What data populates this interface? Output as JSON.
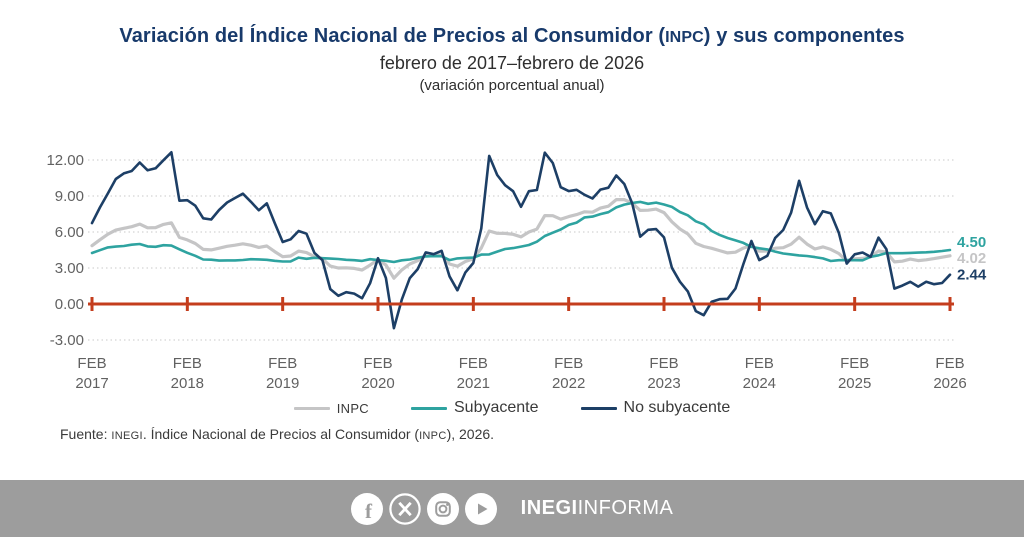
{
  "header": {
    "title_pre": "Variación del Índice Nacional de Precios al Consumidor (",
    "title_acronym": "INPC",
    "title_post": ") y sus componentes",
    "subtitle": "febrero de 2017–febrero de 2026",
    "note": "(variación porcentual anual)"
  },
  "chart_data": {
    "type": "line",
    "title": "Variación del Índice Nacional de Precios al Consumidor (INPC) y sus componentes",
    "subtitle": "febrero de 2017–febrero de 2026 (variación porcentual anual)",
    "x_frequency": "monthly",
    "x_start": "FEB 2017",
    "x_end": "FEB 2026",
    "x_tick_every_months": 12,
    "x_tick_labels": [
      [
        "FEB",
        "2017"
      ],
      [
        "FEB",
        "2018"
      ],
      [
        "FEB",
        "2019"
      ],
      [
        "FEB",
        "2020"
      ],
      [
        "FEB",
        "2021"
      ],
      [
        "FEB",
        "2022"
      ],
      [
        "FEB",
        "2023"
      ],
      [
        "FEB",
        "2024"
      ],
      [
        "FEB",
        "2025"
      ],
      [
        "FEB",
        "2026"
      ]
    ],
    "y_ticks": [
      12,
      9,
      6,
      3,
      0,
      -3
    ],
    "y_tick_labels": [
      "12.00",
      "9.00",
      "6.00",
      "3.00",
      "0.00",
      "-3.00"
    ],
    "ylim": [
      -3,
      12
    ],
    "grid": "horizontal-dotted",
    "grid_color": "#c9c9c9",
    "zero_axis_color": "#c43d1d",
    "axis_text_color": "#616161",
    "legend_position": "bottom",
    "series": [
      {
        "name": "INPC",
        "color": "#c5c5c6",
        "end_label": "4.02",
        "values": [
          4.86,
          5.35,
          5.82,
          6.16,
          6.31,
          6.44,
          6.66,
          6.35,
          6.37,
          6.63,
          6.77,
          5.55,
          5.34,
          5.04,
          4.55,
          4.51,
          4.65,
          4.81,
          4.9,
          5.02,
          4.9,
          4.72,
          4.83,
          4.37,
          3.94,
          4.0,
          4.41,
          4.28,
          3.95,
          3.78,
          3.16,
          3.0,
          3.02,
          2.97,
          2.83,
          3.24,
          3.7,
          3.25,
          2.15,
          2.84,
          3.33,
          3.62,
          4.05,
          4.01,
          4.09,
          3.33,
          3.15,
          3.54,
          3.76,
          4.67,
          6.08,
          5.89,
          5.88,
          5.81,
          5.59,
          6.0,
          6.24,
          7.37,
          7.36,
          7.07,
          7.28,
          7.45,
          7.68,
          7.65,
          7.99,
          8.15,
          8.7,
          8.7,
          8.41,
          7.8,
          7.82,
          7.91,
          7.62,
          6.85,
          6.25,
          5.84,
          5.06,
          4.79,
          4.64,
          4.45,
          4.26,
          4.32,
          4.66,
          4.88,
          4.4,
          4.42,
          4.65,
          4.69,
          4.98,
          5.57,
          4.99,
          4.58,
          4.76,
          4.55,
          4.21,
          3.59,
          3.77,
          3.8,
          3.93,
          4.42,
          4.32,
          3.51,
          3.57,
          3.74,
          3.62,
          3.68,
          3.78,
          3.9,
          4.02
        ]
      },
      {
        "name": "Subyacente",
        "color": "#2ea3a0",
        "end_label": "4.50",
        "values": [
          4.25,
          4.48,
          4.72,
          4.78,
          4.83,
          4.94,
          5.0,
          4.8,
          4.77,
          4.9,
          4.87,
          4.56,
          4.27,
          4.02,
          3.71,
          3.69,
          3.62,
          3.63,
          3.63,
          3.67,
          3.73,
          3.72,
          3.68,
          3.6,
          3.54,
          3.55,
          3.87,
          3.77,
          3.85,
          3.82,
          3.78,
          3.75,
          3.68,
          3.65,
          3.59,
          3.73,
          3.66,
          3.6,
          3.5,
          3.64,
          3.71,
          3.85,
          3.97,
          3.99,
          3.98,
          3.66,
          3.8,
          3.84,
          3.87,
          4.12,
          4.13,
          4.37,
          4.58,
          4.66,
          4.78,
          4.92,
          5.19,
          5.67,
          5.94,
          6.21,
          6.59,
          6.78,
          7.22,
          7.28,
          7.49,
          7.65,
          8.05,
          8.28,
          8.42,
          8.51,
          8.35,
          8.45,
          8.29,
          8.09,
          7.67,
          7.39,
          6.89,
          6.64,
          6.08,
          5.76,
          5.5,
          5.3,
          5.09,
          4.76,
          4.64,
          4.55,
          4.37,
          4.21,
          4.13,
          4.05,
          4.0,
          3.91,
          3.8,
          3.58,
          3.65,
          3.66,
          3.65,
          3.64,
          3.93,
          4.06,
          4.24,
          4.23,
          4.23,
          4.26,
          4.28,
          4.31,
          4.35,
          4.42,
          4.5
        ]
      },
      {
        "name": "No subyacente",
        "color": "#1d3f66",
        "end_label": "2.44",
        "values": [
          6.74,
          8.04,
          9.22,
          10.42,
          10.88,
          11.08,
          11.79,
          11.14,
          11.31,
          11.98,
          12.64,
          8.61,
          8.65,
          8.19,
          7.14,
          7.04,
          7.83,
          8.46,
          8.83,
          9.19,
          8.52,
          7.81,
          8.38,
          6.75,
          5.17,
          5.39,
          6.08,
          5.86,
          4.26,
          3.66,
          1.24,
          0.68,
          0.98,
          0.87,
          0.48,
          1.73,
          3.82,
          2.17,
          -2.02,
          0.37,
          2.16,
          2.91,
          4.3,
          4.15,
          4.43,
          2.31,
          1.14,
          2.63,
          3.42,
          6.31,
          12.34,
          10.75,
          9.9,
          9.4,
          8.1,
          9.4,
          9.5,
          12.61,
          11.75,
          9.73,
          9.41,
          9.52,
          9.1,
          8.79,
          9.53,
          9.69,
          10.71,
          10.0,
          8.38,
          5.61,
          6.18,
          6.24,
          5.55,
          3.02,
          1.86,
          1.05,
          -0.59,
          -0.93,
          0.19,
          0.4,
          0.43,
          1.29,
          3.33,
          5.25,
          3.66,
          4.02,
          5.51,
          6.17,
          7.61,
          10.27,
          8.05,
          6.65,
          7.73,
          7.55,
          5.94,
          3.37,
          4.14,
          4.29,
          3.93,
          5.53,
          4.57,
          1.28,
          1.53,
          1.85,
          1.45,
          1.85,
          1.65,
          1.75,
          2.44
        ]
      }
    ]
  },
  "source": {
    "pre": "Fuente: ",
    "org": "INEGI",
    "mid": ". Índice Nacional de Precios al Consumidor (",
    "acronym": "INPC",
    "post": "), 2026."
  },
  "footer": {
    "band_color": "#9d9d9d",
    "icons": [
      "facebook-icon",
      "x-icon",
      "instagram-icon",
      "youtube-icon"
    ],
    "brand_bold": "INEGI",
    "brand_regular": "INFORMA"
  }
}
